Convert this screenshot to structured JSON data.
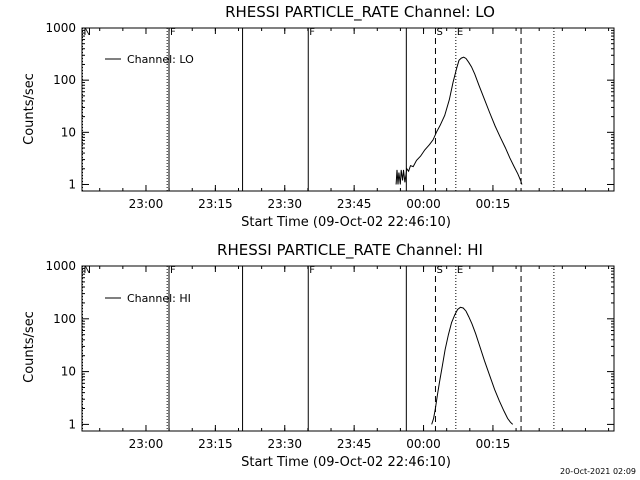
{
  "footer": {
    "timestamp": "20-Oct-2021 02:09"
  },
  "chart_data": [
    {
      "type": "line",
      "title": "RHESSI PARTICLE_RATE Channel: LO",
      "xlabel": "Start Time (09-Oct-02 22:46:10)",
      "ylabel": "Counts/sec",
      "yscale": "log",
      "xlim": [
        0,
        115
      ],
      "ylim": [
        0.75,
        1000
      ],
      "x_unit": "minutes after start time",
      "xticks": [
        {
          "x": 13.83,
          "label": "23:00"
        },
        {
          "x": 28.83,
          "label": "23:15"
        },
        {
          "x": 43.83,
          "label": "23:30"
        },
        {
          "x": 58.83,
          "label": "23:45"
        },
        {
          "x": 73.83,
          "label": "00:00"
        },
        {
          "x": 88.83,
          "label": "00:15"
        }
      ],
      "yticks": [
        {
          "y": 1,
          "label": "1"
        },
        {
          "y": 10,
          "label": "10"
        },
        {
          "y": 100,
          "label": "100"
        },
        {
          "y": 1000,
          "label": "1000"
        }
      ],
      "legend": {
        "label": "Channel: LO",
        "placement": "top-left"
      },
      "markers": [
        {
          "x": 0,
          "style": "dotted",
          "label": "N"
        },
        {
          "x": 18.3,
          "style": "dotted",
          "label": ""
        },
        {
          "x": 18.7,
          "style": "solid",
          "label": "F"
        },
        {
          "x": 34.6,
          "style": "solid",
          "label": ""
        },
        {
          "x": 48.8,
          "style": "solid",
          "label": "F"
        },
        {
          "x": 70.0,
          "style": "solid",
          "label": ""
        },
        {
          "x": 76.3,
          "style": "dashed",
          "label": "S"
        },
        {
          "x": 80.7,
          "style": "dotted",
          "label": "E"
        },
        {
          "x": 94.8,
          "style": "dashed",
          "label": ""
        },
        {
          "x": 101.9,
          "style": "dotted",
          "label": ""
        }
      ],
      "series": [
        {
          "name": "Channel: LO",
          "x": [
            67.9,
            68.1,
            68.3,
            68.5,
            68.8,
            69.0,
            69.3,
            69.5,
            69.8,
            70.2,
            70.6,
            71.0,
            71.6,
            72.3,
            73.2,
            74.1,
            75.1,
            75.9,
            76.6,
            77.4,
            78.4,
            79.4,
            80.2,
            81.0,
            81.5,
            82.0,
            82.5,
            83.0,
            83.6,
            84.2,
            84.9,
            85.8,
            86.9,
            88.1,
            89.3,
            90.4,
            91.5,
            92.5,
            93.4,
            94.2,
            94.8,
            95.1
          ],
          "y": [
            1.0,
            1.9,
            1.0,
            1.7,
            1.0,
            1.9,
            1.2,
            1.9,
            1.1,
            2.0,
            1.8,
            2.3,
            2.2,
            2.9,
            3.5,
            4.6,
            5.8,
            7.2,
            10.0,
            13.6,
            21,
            42,
            90,
            170,
            240,
            265,
            275,
            260,
            220,
            180,
            130,
            80,
            45,
            24,
            13.2,
            8.1,
            5.1,
            3.2,
            2.2,
            1.6,
            1.2,
            1.0
          ]
        }
      ]
    },
    {
      "type": "line",
      "title": "RHESSI PARTICLE_RATE Channel: HI",
      "xlabel": "Start Time (09-Oct-02 22:46:10)",
      "ylabel": "Counts/sec",
      "yscale": "log",
      "xlim": [
        0,
        115
      ],
      "ylim": [
        0.75,
        1000
      ],
      "x_unit": "minutes after start time",
      "xticks": [
        {
          "x": 13.83,
          "label": "23:00"
        },
        {
          "x": 28.83,
          "label": "23:15"
        },
        {
          "x": 43.83,
          "label": "23:30"
        },
        {
          "x": 58.83,
          "label": "23:45"
        },
        {
          "x": 73.83,
          "label": "00:00"
        },
        {
          "x": 88.83,
          "label": "00:15"
        }
      ],
      "yticks": [
        {
          "y": 1,
          "label": "1"
        },
        {
          "y": 10,
          "label": "10"
        },
        {
          "y": 100,
          "label": "100"
        },
        {
          "y": 1000,
          "label": "1000"
        }
      ],
      "legend": {
        "label": "Channel: HI",
        "placement": "top-left"
      },
      "markers": [
        {
          "x": 0,
          "style": "dotted",
          "label": "N"
        },
        {
          "x": 18.3,
          "style": "dotted",
          "label": ""
        },
        {
          "x": 18.7,
          "style": "solid",
          "label": "F"
        },
        {
          "x": 34.6,
          "style": "solid",
          "label": ""
        },
        {
          "x": 48.8,
          "style": "solid",
          "label": "F"
        },
        {
          "x": 70.0,
          "style": "solid",
          "label": ""
        },
        {
          "x": 76.3,
          "style": "dashed",
          "label": "S"
        },
        {
          "x": 80.7,
          "style": "dotted",
          "label": "E"
        },
        {
          "x": 94.8,
          "style": "dashed",
          "label": ""
        },
        {
          "x": 101.9,
          "style": "dotted",
          "label": ""
        }
      ],
      "series": [
        {
          "name": "Channel: HI",
          "x": [
            75.6,
            76.0,
            76.4,
            76.8,
            77.3,
            77.9,
            78.5,
            79.2,
            79.9,
            80.6,
            81.2,
            81.8,
            82.4,
            83.0,
            83.6,
            84.3,
            85.1,
            86.0,
            87.0,
            88.1,
            89.2,
            90.2,
            91.2,
            92.0,
            92.6,
            93.1
          ],
          "y": [
            1.0,
            1.3,
            2.0,
            3.5,
            6.5,
            13,
            26,
            50,
            85,
            120,
            150,
            165,
            160,
            140,
            110,
            80,
            52,
            30,
            16,
            8.5,
            4.6,
            2.8,
            1.8,
            1.3,
            1.1,
            1.0
          ]
        }
      ]
    }
  ]
}
